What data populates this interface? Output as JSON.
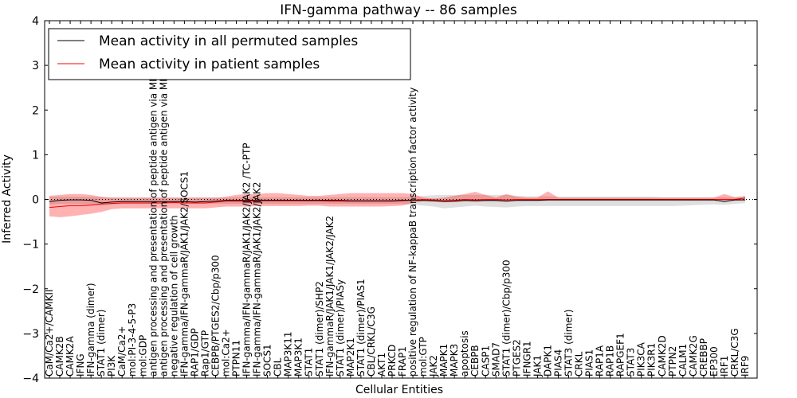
{
  "chart_data": {
    "type": "line",
    "title": "IFN-gamma pathway -- 86 samples",
    "xlabel": "Cellular Entities",
    "ylabel": "Inferred Activity",
    "ylim": [
      -4,
      4
    ],
    "yticks": [
      -4,
      -3,
      -2,
      -1,
      0,
      1,
      2,
      3,
      4
    ],
    "ytick_labels": [
      "−4",
      "−3",
      "−2",
      "−1",
      "0",
      "1",
      "2",
      "3",
      "4"
    ],
    "grid": false,
    "legend_position": "top-left",
    "categories": [
      "CaM/Ca2+/CAMKII",
      "CAMK2B",
      "CAMK2A",
      "IFNG",
      "IFN-gamma (dimer)",
      "STAT1 (dimer)",
      "PI3K",
      "CaM/Ca2+",
      "mol:PI-3-4-5-P3",
      "mol:GDP",
      "antigen processing and presentation of peptide antigen via MHC class I",
      "antigen processing and presentation of peptide antigen via MHC class II",
      "negative regulation of cell growth",
      "IFN-gamma/IFN-gammaR/JAK1/JAK2/SOCS1",
      "RAP1/GDP",
      "Rap1/GTP",
      "CEBPB/PTGES2/Cbp/p300",
      "mol:Ca2+",
      "PTPN11",
      "IFN-gamma/IFN-gammaR/JAK1/JAK2/JAK2 /TC-PTP",
      "IFN-gamma/IFN-gammaR/JAK1/JAK2/JAK2",
      "SOCS1",
      "CBL",
      "MAP3K11",
      "MAP3K1",
      "STAT1",
      "STAT1 (dimer)/SHP2",
      "IFN-gammaR/JAK1/JAK1/JAK2/JAK2",
      "STAT1 (dimer)/PIASy",
      "MAP2K1",
      "STAT1 (dimer)/PIAS1",
      "CBL/CRKL/C3G",
      "AKT1",
      "PRKCD",
      "FRAP1",
      "positive regulation of NF-kappaB transcription factor activity",
      "mol:GTP",
      "JAK2",
      "MAPK1",
      "MAPK3",
      "apoptosis",
      "CEBPB",
      "CASP1",
      "SMAD7",
      "STAT1 (dimer)/Cbp/p300",
      "PTGES2",
      "IFNGR1",
      "JAK1",
      "DAPK1",
      "PIAS4",
      "STAT3 (dimer)",
      "CRKL",
      "PIAS1",
      "RAP1A",
      "RAP1B",
      "RAPGEF1",
      "STAT3",
      "PIK3CA",
      "PIK3R1",
      "CAMK2D",
      "PTPN2",
      "CALM1",
      "CAMK2G",
      "CREBBP",
      "EP300",
      "IRF1",
      "CRKL/C3G",
      "IRF9"
    ],
    "series": [
      {
        "name": "Mean activity in all permuted samples",
        "color": "#000000",
        "values": [
          -0.05,
          -0.02,
          -0.01,
          -0.01,
          -0.02,
          -0.08,
          -0.06,
          -0.05,
          -0.05,
          -0.05,
          -0.05,
          -0.05,
          -0.05,
          -0.05,
          -0.06,
          -0.05,
          -0.04,
          -0.02,
          -0.02,
          -0.02,
          -0.02,
          -0.02,
          -0.02,
          -0.02,
          -0.02,
          -0.02,
          -0.02,
          -0.02,
          -0.02,
          -0.03,
          -0.03,
          -0.03,
          -0.03,
          -0.03,
          -0.02,
          -0.02,
          -0.02,
          -0.03,
          -0.05,
          -0.04,
          -0.02,
          -0.03,
          -0.02,
          -0.02,
          -0.04,
          -0.02,
          -0.02,
          -0.02,
          -0.01,
          -0.01,
          -0.01,
          -0.01,
          -0.01,
          -0.01,
          -0.01,
          -0.01,
          -0.01,
          -0.01,
          -0.01,
          -0.01,
          -0.01,
          -0.01,
          -0.01,
          -0.01,
          -0.01,
          -0.05,
          -0.01,
          -0.01
        ],
        "band_lower": [
          -0.12,
          -0.1,
          -0.1,
          -0.1,
          -0.12,
          -0.14,
          -0.12,
          -0.1,
          -0.1,
          -0.1,
          -0.1,
          -0.1,
          -0.1,
          -0.1,
          -0.1,
          -0.1,
          -0.1,
          -0.1,
          -0.1,
          -0.1,
          -0.1,
          -0.1,
          -0.1,
          -0.1,
          -0.1,
          -0.1,
          -0.1,
          -0.1,
          -0.1,
          -0.1,
          -0.1,
          -0.1,
          -0.1,
          -0.1,
          -0.1,
          -0.12,
          -0.14,
          -0.16,
          -0.2,
          -0.18,
          -0.16,
          -0.14,
          -0.16,
          -0.17,
          -0.18,
          -0.16,
          -0.15,
          -0.15,
          -0.15,
          -0.15,
          -0.15,
          -0.15,
          -0.15,
          -0.15,
          -0.15,
          -0.15,
          -0.15,
          -0.15,
          -0.15,
          -0.15,
          -0.15,
          -0.14,
          -0.13,
          -0.12,
          -0.11,
          -0.12,
          -0.1,
          -0.08
        ],
        "band_upper": [
          0.06,
          0.06,
          0.06,
          0.06,
          0.06,
          0.05,
          0.04,
          0.04,
          0.04,
          0.04,
          0.04,
          0.04,
          0.04,
          0.04,
          0.04,
          0.04,
          0.04,
          0.04,
          0.05,
          0.05,
          0.05,
          0.05,
          0.05,
          0.05,
          0.05,
          0.05,
          0.05,
          0.05,
          0.05,
          0.05,
          0.05,
          0.05,
          0.05,
          0.05,
          0.05,
          0.06,
          0.08,
          0.09,
          0.1,
          0.1,
          0.1,
          0.1,
          0.1,
          0.1,
          0.1,
          0.08,
          0.07,
          0.07,
          0.07,
          0.06,
          0.06,
          0.06,
          0.06,
          0.06,
          0.06,
          0.06,
          0.06,
          0.06,
          0.06,
          0.05,
          0.05,
          0.05,
          0.05,
          0.05,
          0.05,
          0.05,
          0.05,
          0.05
        ]
      },
      {
        "name": "Mean activity in patient samples",
        "color": "#ff0000",
        "values": [
          -0.18,
          -0.16,
          -0.14,
          -0.14,
          -0.13,
          -0.1,
          -0.09,
          -0.08,
          -0.08,
          -0.08,
          -0.08,
          -0.08,
          -0.07,
          -0.08,
          -0.08,
          -0.08,
          -0.06,
          -0.04,
          -0.04,
          -0.04,
          -0.03,
          -0.03,
          -0.03,
          -0.03,
          -0.03,
          -0.03,
          -0.03,
          -0.04,
          -0.04,
          -0.04,
          -0.04,
          -0.04,
          -0.04,
          -0.04,
          -0.03,
          -0.02,
          0.0,
          -0.01,
          -0.02,
          -0.02,
          0.0,
          -0.01,
          0.0,
          0.0,
          -0.01,
          0.0,
          0.0,
          0.0,
          0.0,
          0.0,
          0.0,
          0.0,
          0.0,
          0.0,
          0.0,
          0.0,
          0.0,
          0.0,
          0.0,
          0.0,
          0.0,
          0.0,
          0.0,
          0.0,
          0.0,
          0.0,
          0.0,
          0.03
        ],
        "band_lower": [
          -0.38,
          -0.4,
          -0.38,
          -0.35,
          -0.32,
          -0.28,
          -0.22,
          -0.2,
          -0.2,
          -0.2,
          -0.2,
          -0.2,
          -0.2,
          -0.2,
          -0.2,
          -0.2,
          -0.18,
          -0.16,
          -0.16,
          -0.16,
          -0.15,
          -0.15,
          -0.15,
          -0.15,
          -0.15,
          -0.14,
          -0.14,
          -0.16,
          -0.16,
          -0.16,
          -0.16,
          -0.16,
          -0.16,
          -0.15,
          -0.14,
          -0.08,
          -0.05,
          -0.05,
          -0.06,
          -0.06,
          -0.05,
          -0.05,
          -0.05,
          -0.05,
          -0.05,
          -0.04,
          -0.04,
          -0.04,
          -0.03,
          -0.03,
          -0.03,
          -0.03,
          -0.03,
          -0.03,
          -0.03,
          -0.03,
          -0.03,
          -0.03,
          -0.03,
          -0.03,
          -0.03,
          -0.03,
          -0.03,
          -0.03,
          -0.03,
          -0.03,
          -0.03,
          -0.02
        ],
        "band_upper": [
          0.08,
          0.1,
          0.12,
          0.12,
          0.1,
          0.06,
          0.04,
          0.04,
          0.04,
          0.04,
          0.04,
          0.04,
          0.04,
          0.04,
          0.04,
          0.04,
          0.04,
          0.06,
          0.1,
          0.12,
          0.12,
          0.14,
          0.14,
          0.12,
          0.1,
          0.08,
          0.08,
          0.1,
          0.12,
          0.14,
          0.14,
          0.14,
          0.14,
          0.14,
          0.14,
          0.12,
          0.04,
          0.02,
          0.04,
          0.08,
          0.12,
          0.17,
          0.1,
          0.04,
          0.12,
          0.06,
          0.04,
          0.04,
          0.18,
          0.04,
          0.04,
          0.04,
          0.04,
          0.04,
          0.04,
          0.04,
          0.04,
          0.04,
          0.04,
          0.04,
          0.04,
          0.04,
          0.04,
          0.04,
          0.04,
          0.12,
          0.05,
          0.08
        ]
      }
    ]
  }
}
